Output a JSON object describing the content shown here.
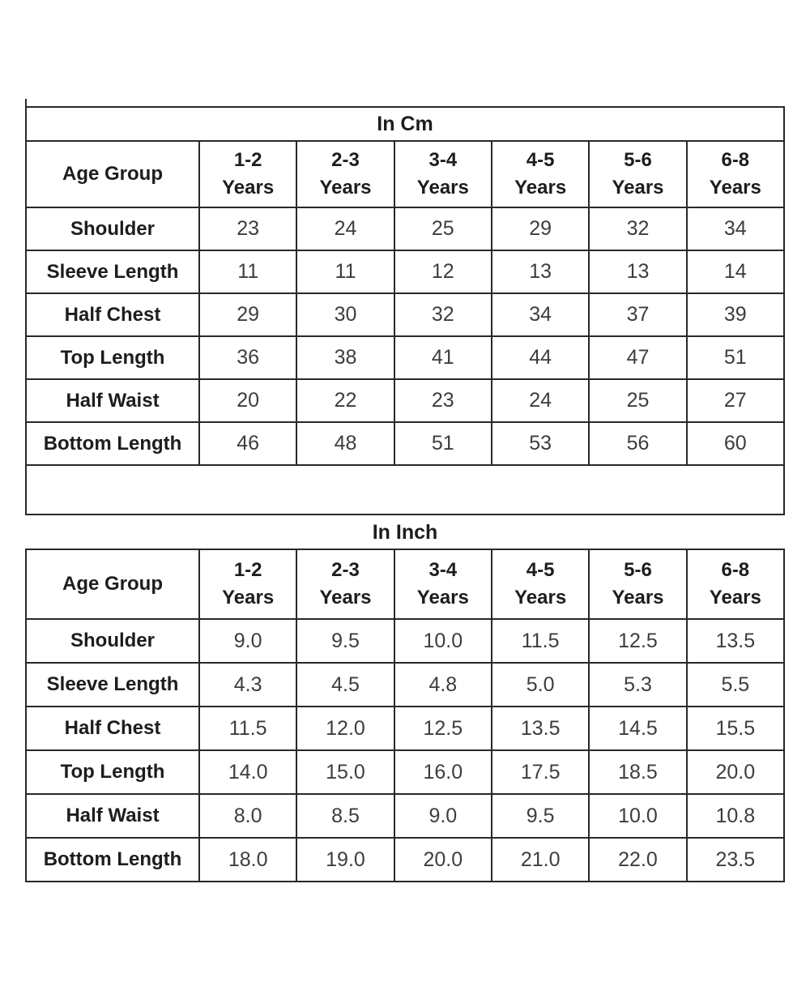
{
  "colors": {
    "background": "#ffffff",
    "border": "#282828",
    "heading_text": "#1d1d1d",
    "value_text": "#3d3d3d"
  },
  "chart_data": [
    {
      "type": "table",
      "title": "In Cm",
      "corner_header": "Age Group",
      "column_headers": [
        {
          "range": "1-2",
          "unit": "Years"
        },
        {
          "range": "2-3",
          "unit": "Years"
        },
        {
          "range": "3-4",
          "unit": "Years"
        },
        {
          "range": "4-5",
          "unit": "Years"
        },
        {
          "range": "5-6",
          "unit": "Years"
        },
        {
          "range": "6-8",
          "unit": "Years"
        }
      ],
      "rows": [
        {
          "label": "Shoulder",
          "values": [
            "23",
            "24",
            "25",
            "29",
            "32",
            "34"
          ]
        },
        {
          "label": "Sleeve Length",
          "values": [
            "11",
            "11",
            "12",
            "13",
            "13",
            "14"
          ]
        },
        {
          "label": "Half Chest",
          "values": [
            "29",
            "30",
            "32",
            "34",
            "37",
            "39"
          ]
        },
        {
          "label": "Top Length",
          "values": [
            "36",
            "38",
            "41",
            "44",
            "47",
            "51"
          ]
        },
        {
          "label": "Half Waist",
          "values": [
            "20",
            "22",
            "23",
            "24",
            "25",
            "27"
          ]
        },
        {
          "label": "Bottom Length",
          "values": [
            "46",
            "48",
            "51",
            "53",
            "56",
            "60"
          ]
        }
      ],
      "has_trailing_empty_row": true
    },
    {
      "type": "table",
      "title": "In Inch",
      "corner_header": "Age Group",
      "column_headers": [
        {
          "range": "1-2",
          "unit": "Years"
        },
        {
          "range": "2-3",
          "unit": "Years"
        },
        {
          "range": "3-4",
          "unit": "Years"
        },
        {
          "range": "4-5",
          "unit": "Years"
        },
        {
          "range": "5-6",
          "unit": "Years"
        },
        {
          "range": "6-8",
          "unit": "Years"
        }
      ],
      "rows": [
        {
          "label": "Shoulder",
          "values": [
            "9.0",
            "9.5",
            "10.0",
            "11.5",
            "12.5",
            "13.5"
          ]
        },
        {
          "label": "Sleeve Length",
          "values": [
            "4.3",
            "4.5",
            "4.8",
            "5.0",
            "5.3",
            "5.5"
          ]
        },
        {
          "label": "Half Chest",
          "values": [
            "11.5",
            "12.0",
            "12.5",
            "13.5",
            "14.5",
            "15.5"
          ]
        },
        {
          "label": "Top Length",
          "values": [
            "14.0",
            "15.0",
            "16.0",
            "17.5",
            "18.5",
            "20.0"
          ]
        },
        {
          "label": "Half Waist",
          "values": [
            "8.0",
            "8.5",
            "9.0",
            "9.5",
            "10.0",
            "10.8"
          ]
        },
        {
          "label": "Bottom Length",
          "values": [
            "18.0",
            "19.0",
            "20.0",
            "21.0",
            "22.0",
            "23.5"
          ]
        }
      ],
      "has_trailing_empty_row": false
    }
  ]
}
